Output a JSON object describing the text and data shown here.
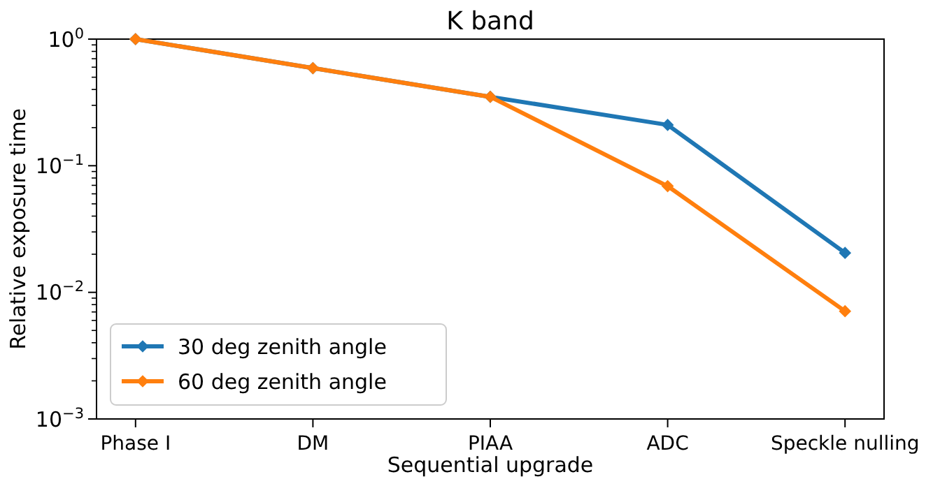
{
  "chart_data": {
    "type": "line",
    "title": "K band",
    "xlabel": "Sequential upgrade",
    "ylabel": "Relative exposure time",
    "categories": [
      "Phase I",
      "DM",
      "PIAA",
      "ADC",
      "Speckle nulling"
    ],
    "series": [
      {
        "name": "30 deg zenith angle",
        "color": "#1f77b4",
        "values": [
          1,
          0.59,
          0.35,
          0.21,
          0.0205
        ]
      },
      {
        "name": "60 deg zenith angle",
        "color": "#ff7f0e",
        "values": [
          1,
          0.59,
          0.35,
          0.069,
          0.0071
        ]
      }
    ],
    "log": true,
    "ylim": [
      0.001,
      1
    ],
    "yticks": [
      {
        "value": 0.001,
        "label": "10$^{−3}$"
      },
      {
        "value": 0.01,
        "label": "10$^{−2}$"
      },
      {
        "value": 0.1,
        "label": "10$^{−1}$"
      },
      {
        "value": 1,
        "label": "10$^{0}$"
      },
      {
        "value": 0.002,
        "label": null
      },
      {
        "value": 0.003,
        "label": null
      },
      {
        "value": 0.004,
        "label": null
      },
      {
        "value": 0.005,
        "label": null
      },
      {
        "value": 0.006,
        "label": null
      },
      {
        "value": 0.007,
        "label": null
      },
      {
        "value": 0.008,
        "label": null
      },
      {
        "value": 0.009,
        "label": null
      },
      {
        "value": 0.02,
        "label": null
      },
      {
        "value": 0.03,
        "label": null
      },
      {
        "value": 0.04,
        "label": null
      },
      {
        "value": 0.05,
        "label": null
      },
      {
        "value": 0.06,
        "label": null
      },
      {
        "value": 0.07,
        "label": null
      },
      {
        "value": 0.08,
        "label": null
      },
      {
        "value": 0.09,
        "label": null
      },
      {
        "value": 0.2,
        "label": null
      },
      {
        "value": 0.3,
        "label": null
      },
      {
        "value": 0.4,
        "label": null
      },
      {
        "value": 0.5,
        "label": null
      },
      {
        "value": 0.6,
        "label": null
      },
      {
        "value": 0.7,
        "label": null
      },
      {
        "value": 0.8,
        "label": null
      },
      {
        "value": 0.9,
        "label": null
      }
    ],
    "legend": "bottom left",
    "marker": "diamond",
    "line_style": "solid",
    "grid": false
  }
}
